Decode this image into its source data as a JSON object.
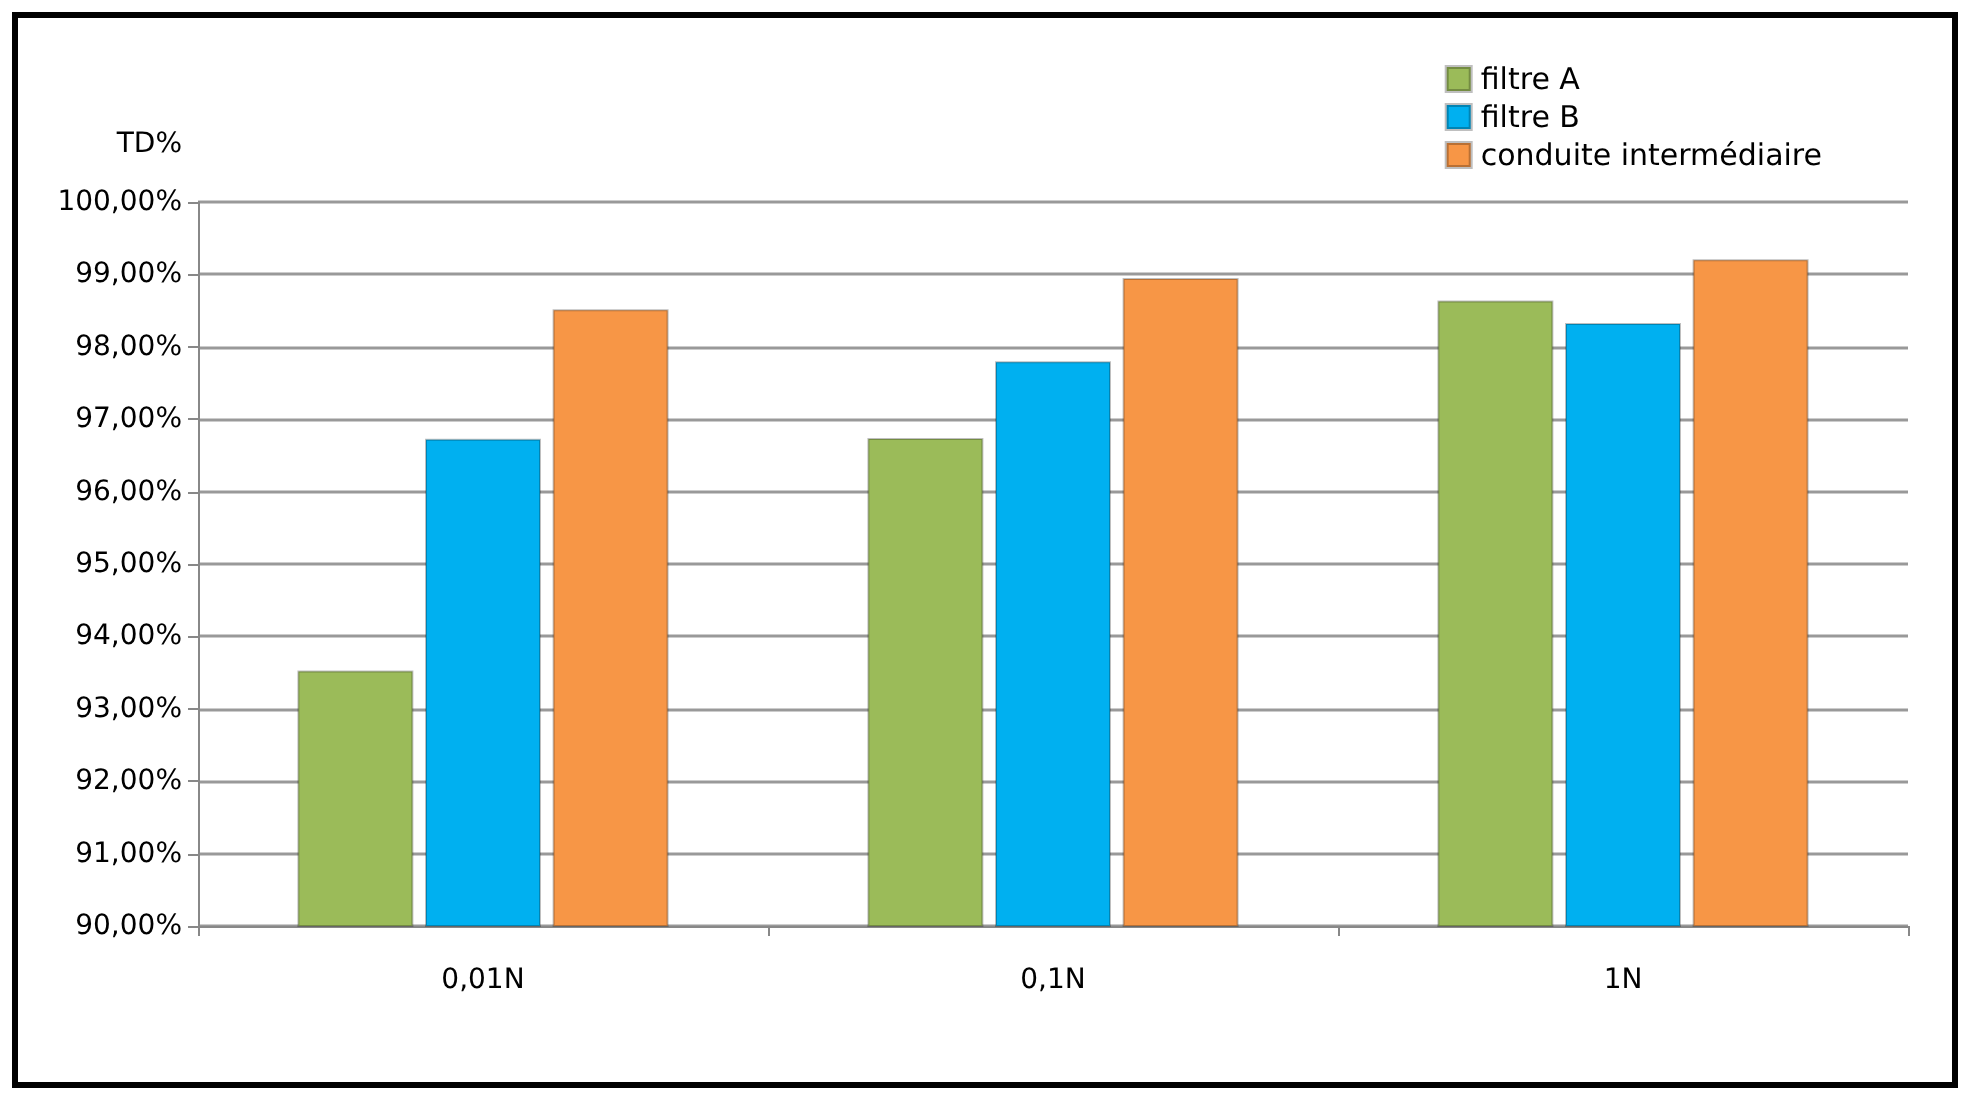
{
  "chart_data": {
    "type": "bar",
    "ylabel": "TD%",
    "categories": [
      "0,01N",
      "0,1N",
      "1N"
    ],
    "series": [
      {
        "name": "filtre A",
        "color": "#9bbb59",
        "values": [
          93.53,
          96.74,
          98.64
        ]
      },
      {
        "name": "filtre B",
        "color": "#00b0f0",
        "values": [
          96.73,
          97.8,
          98.33
        ]
      },
      {
        "name": "conduite intermédiaire",
        "color": "#f79646",
        "values": [
          98.52,
          98.95,
          99.21
        ]
      }
    ],
    "ylim": [
      90,
      100
    ],
    "yticks": [
      {
        "value": 90,
        "label": "90,00%"
      },
      {
        "value": 91,
        "label": "91,00%"
      },
      {
        "value": 92,
        "label": "92,00%"
      },
      {
        "value": 93,
        "label": "93,00%"
      },
      {
        "value": 94,
        "label": "94,00%"
      },
      {
        "value": 95,
        "label": "95,00%"
      },
      {
        "value": 96,
        "label": "96,00%"
      },
      {
        "value": 97,
        "label": "97,00%"
      },
      {
        "value": 98,
        "label": "98,00%"
      },
      {
        "value": 99,
        "label": "99,00%"
      },
      {
        "value": 100,
        "label": "100,00%"
      }
    ],
    "grid": "y",
    "legend": "top right"
  }
}
